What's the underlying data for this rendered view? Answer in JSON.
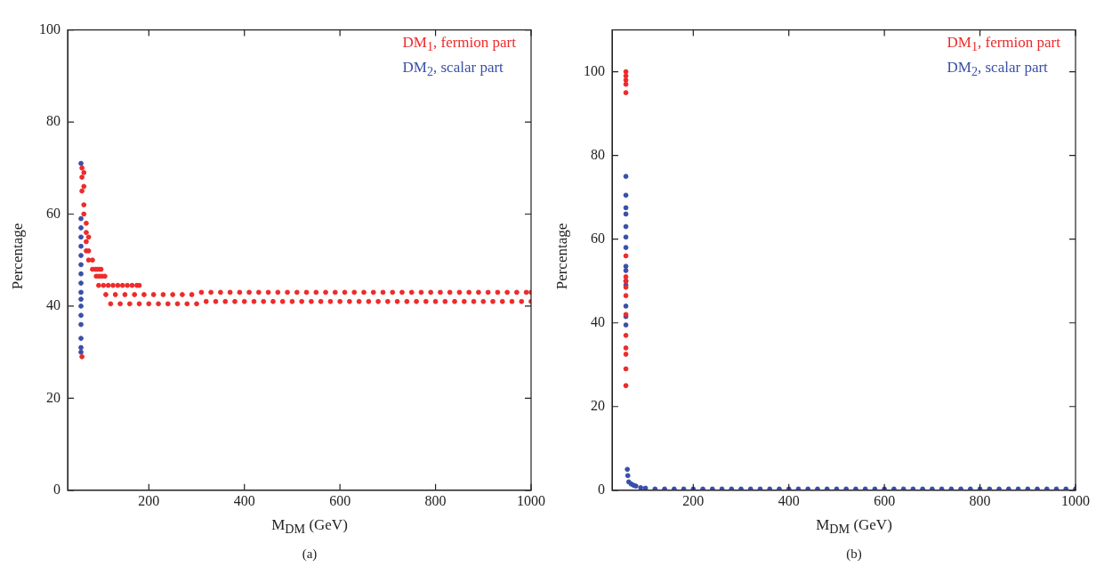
{
  "chart_data": [
    {
      "type": "scatter",
      "xlabel": "M$_{DM}$ (GeV)",
      "ylabel": "Percentage",
      "xlim": [
        30,
        1000
      ],
      "ylim": [
        0,
        100
      ],
      "xticks": [
        200,
        400,
        600,
        800,
        1000
      ],
      "yticks": [
        0,
        20,
        40,
        60,
        80,
        100
      ],
      "legend": "top right",
      "marker": "circle",
      "annotations": [
        "(a)"
      ],
      "series": [
        {
          "name": "DM$_{1}$, fermion part",
          "color": "#ee2a2a",
          "x": [
            60,
            60,
            60,
            60,
            64,
            64,
            64,
            64,
            69,
            69,
            69,
            69,
            74,
            74,
            74,
            82,
            82,
            88,
            92,
            96,
            100,
            90,
            96,
            102,
            108,
            95,
            105,
            115,
            125,
            135,
            145,
            155,
            165,
            175,
            180,
            110,
            130,
            150,
            170,
            190,
            210,
            230,
            250,
            270,
            290,
            310,
            330,
            350,
            370,
            390,
            410,
            430,
            450,
            470,
            490,
            510,
            530,
            550,
            570,
            590,
            610,
            630,
            650,
            670,
            690,
            710,
            730,
            750,
            770,
            790,
            810,
            830,
            850,
            870,
            890,
            910,
            930,
            950,
            970,
            990,
            1000,
            120,
            140,
            160,
            180,
            200,
            220,
            240,
            260,
            280,
            300,
            320,
            340,
            360,
            380,
            400,
            420,
            440,
            460,
            480,
            500,
            520,
            540,
            560,
            580,
            600,
            620,
            640,
            660,
            680,
            700,
            720,
            740,
            760,
            780,
            800,
            820,
            840,
            860,
            880,
            900,
            920,
            940,
            960,
            980,
            1000
          ],
          "values": [
            29,
            65,
            68,
            70,
            69,
            66,
            62,
            60,
            58,
            56,
            54,
            52,
            55,
            52,
            50,
            50,
            48,
            48,
            48,
            48,
            48,
            46.5,
            46.5,
            46.5,
            46.5,
            44.5,
            44.5,
            44.5,
            44.5,
            44.5,
            44.5,
            44.5,
            44.5,
            44.5,
            44.5,
            42.5,
            42.5,
            42.5,
            42.5,
            42.5,
            42.5,
            42.5,
            42.5,
            42.5,
            42.5,
            43,
            43,
            43,
            43,
            43,
            43,
            43,
            43,
            43,
            43,
            43,
            43,
            43,
            43,
            43,
            43,
            43,
            43,
            43,
            43,
            43,
            43,
            43,
            43,
            43,
            43,
            43,
            43,
            43,
            43,
            43,
            43,
            43,
            43,
            43,
            43,
            40.5,
            40.5,
            40.5,
            40.5,
            40.5,
            40.5,
            40.5,
            40.5,
            40.5,
            40.5,
            41,
            41,
            41,
            41,
            41,
            41,
            41,
            41,
            41,
            41,
            41,
            41,
            41,
            41,
            41,
            41,
            41,
            41,
            41,
            41,
            41,
            41,
            41,
            41,
            41,
            41,
            41,
            41,
            41,
            41,
            41,
            41,
            41,
            41,
            41
          ]
        },
        {
          "name": "DM$_{2}$, scalar part",
          "color": "#3a4fa8",
          "x": [
            58,
            58,
            58,
            58,
            58,
            58,
            58,
            58,
            58,
            58,
            58,
            58,
            58,
            58,
            58,
            58,
            58
          ],
          "values": [
            71,
            59,
            57,
            55,
            53,
            51,
            49,
            47,
            45,
            43,
            41.5,
            40,
            38,
            36,
            33,
            31,
            30
          ]
        }
      ]
    },
    {
      "type": "scatter",
      "xlabel": "M$_{DM}$ (GeV)",
      "ylabel": "Percentage",
      "xlim": [
        30,
        1000
      ],
      "ylim": [
        0,
        110
      ],
      "xticks": [
        200,
        400,
        600,
        800,
        1000
      ],
      "yticks": [
        0,
        20,
        40,
        60,
        80,
        100
      ],
      "legend": "top right",
      "marker": "circle",
      "annotations": [
        "(b)"
      ],
      "series": [
        {
          "name": "DM$_{1}$, fermion part",
          "color": "#ee2a2a",
          "x": [
            59,
            59,
            59,
            59,
            59,
            59,
            59,
            59,
            59,
            59,
            59,
            59,
            59,
            59,
            59,
            59
          ],
          "values": [
            25,
            29,
            32.5,
            34,
            37,
            42,
            46.5,
            48.5,
            50,
            51,
            56,
            95,
            97,
            98,
            99,
            100
          ]
        },
        {
          "name": "DM$_{2}$, scalar part",
          "color": "#3a4fa8",
          "x": [
            59,
            59,
            59,
            59,
            59,
            59,
            59,
            59,
            59,
            59,
            59,
            59,
            59,
            59,
            62,
            63,
            65,
            70,
            75,
            80,
            90,
            100,
            120,
            140,
            160,
            180,
            200,
            220,
            240,
            260,
            280,
            300,
            320,
            340,
            360,
            380,
            400,
            420,
            440,
            460,
            480,
            500,
            520,
            540,
            560,
            580,
            600,
            620,
            640,
            660,
            680,
            700,
            720,
            740,
            760,
            780,
            800,
            820,
            840,
            860,
            880,
            900,
            920,
            940,
            960,
            980,
            1000
          ],
          "values": [
            75,
            70.5,
            67.5,
            66,
            63,
            60.5,
            58,
            53.5,
            52.5,
            50,
            49,
            44,
            41.5,
            39.5,
            5,
            3.5,
            2,
            1.5,
            1.2,
            1,
            0.6,
            0.5,
            0.3,
            0.3,
            0.3,
            0.3,
            0.3,
            0.3,
            0.3,
            0.3,
            0.3,
            0.3,
            0.3,
            0.3,
            0.3,
            0.3,
            0.3,
            0.3,
            0.3,
            0.3,
            0.3,
            0.3,
            0.3,
            0.3,
            0.3,
            0.3,
            0.3,
            0.3,
            0.3,
            0.3,
            0.3,
            0.3,
            0.3,
            0.3,
            0.3,
            0.3,
            0.3,
            0.3,
            0.3,
            0.3,
            0.3,
            0.3,
            0.3,
            0.3,
            0.3,
            0.3,
            0.3
          ]
        }
      ]
    }
  ]
}
